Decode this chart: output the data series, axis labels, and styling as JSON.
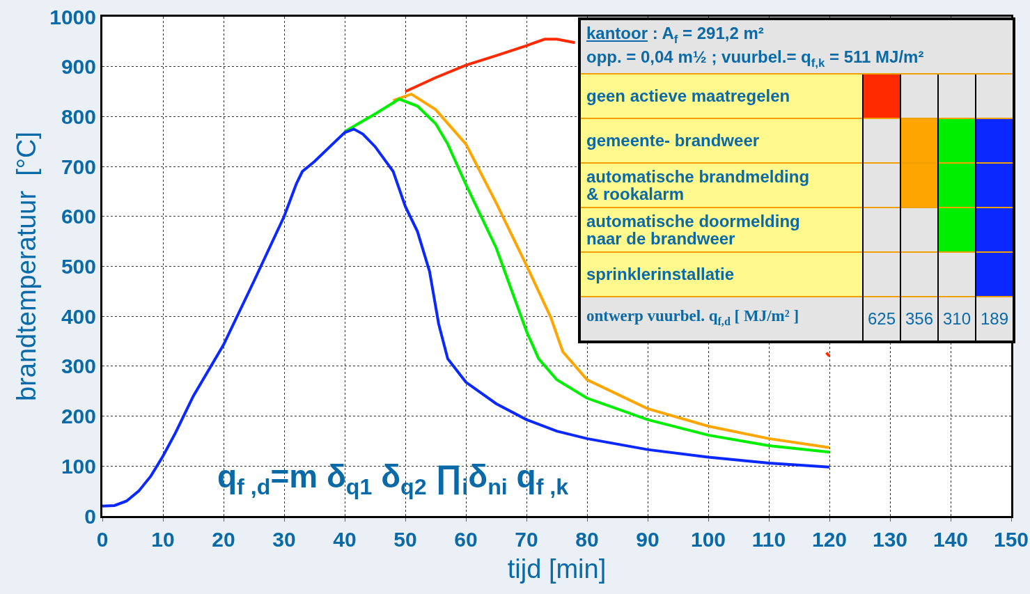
{
  "chart_data": {
    "type": "line",
    "xlabel": "tijd [min]",
    "ylabel": "brandtemperatuur  [°C]",
    "xlim": [
      0,
      150
    ],
    "xticks": [
      0,
      10,
      20,
      30,
      40,
      50,
      60,
      70,
      80,
      90,
      100,
      110,
      120,
      130,
      140,
      150
    ],
    "ylim": [
      0,
      1000
    ],
    "yticks": [
      0,
      100,
      200,
      300,
      400,
      500,
      600,
      700,
      800,
      900,
      1000
    ],
    "grid": true,
    "marker": "none",
    "line_style": "solid",
    "series": [
      {
        "color": "#ff2a00",
        "x": [
          50,
          55,
          60,
          65,
          70,
          73,
          75,
          78,
          79,
          119.5,
          120
        ],
        "values": [
          850,
          878,
          903,
          922,
          942,
          955,
          955,
          948,
          null,
          327,
          320
        ]
      },
      {
        "color": "#ffa500",
        "x": [
          48,
          51,
          55,
          60,
          65,
          70,
          74,
          76,
          80,
          90,
          100,
          110,
          120
        ],
        "values": [
          832,
          845,
          814,
          745,
          627,
          502,
          398,
          329,
          273,
          215,
          180,
          155,
          137
        ]
      },
      {
        "color": "#00ee00",
        "x": [
          40,
          45,
          49,
          52,
          55,
          57,
          60,
          65,
          70,
          72,
          75,
          80,
          90,
          100,
          110,
          120
        ],
        "values": [
          770,
          805,
          835,
          821,
          786,
          745,
          664,
          537,
          370,
          315,
          273,
          236,
          193,
          162,
          141,
          128
        ]
      },
      {
        "color": "#0a28ff",
        "x": [
          0,
          2,
          4,
          6,
          8,
          10,
          12,
          15,
          20,
          25,
          30,
          32,
          33,
          35,
          38,
          40,
          41.5,
          43,
          45,
          48,
          50,
          52,
          54,
          55.5,
          57,
          60,
          65,
          70,
          75,
          80,
          90,
          100,
          110,
          120
        ],
        "values": [
          20,
          21,
          30,
          50,
          80,
          120,
          165,
          240,
          343,
          470,
          600,
          665,
          690,
          710,
          745,
          768,
          775,
          765,
          740,
          690,
          620,
          570,
          490,
          385,
          315,
          268,
          225,
          193,
          170,
          155,
          133,
          118,
          106,
          98
        ]
      }
    ],
    "annotations": [
      "q$_{f ,d}$=m δ$_{q1}$ δ$_{q2}$ ∏$_{i}$δ$_{ni}$ q$_{f ,k}$",
      "kantoor : A$_{f}$ = 291,2 m²",
      "opp. = 0,04 m½    ;  vuurbel.=  q$_{f,k}$ = 511 MJ/m²",
      "geen actieve maatregelen",
      "gemeente- brandweer",
      "automatische brandmelding\n& rookalarm",
      "automatische doormelding\nnaar de brandweer",
      "sprinklerinstallatie",
      "ontwerp vuurbel.   q$_{f,d}$ [ MJ/m² ]",
      "625",
      "356",
      "310",
      "189"
    ]
  }
}
